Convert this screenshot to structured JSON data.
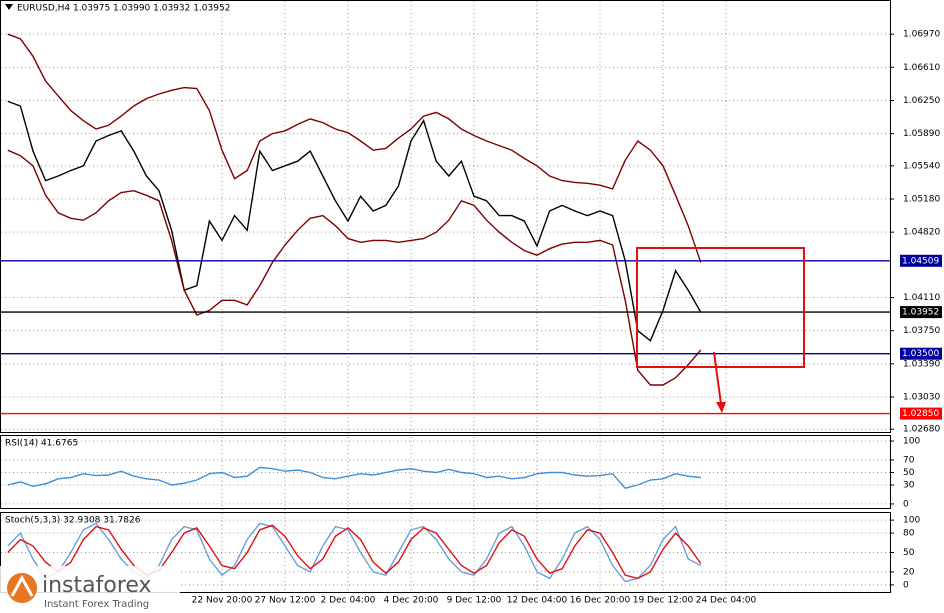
{
  "chart_data": [
    {
      "type": "line",
      "title": "EURUSD,H4  1.03975 1.03990 1.03932 1.03952",
      "categories": [
        null,
        null,
        null,
        null,
        null,
        null,
        null,
        null,
        null,
        null,
        null,
        null,
        null,
        null,
        null,
        null,
        null,
        "22 Nov 20:00",
        null,
        null,
        null,
        null,
        "27 Nov 12:00",
        null,
        null,
        null,
        null,
        "2 Dec 04:00",
        null,
        null,
        null,
        null,
        "4 Dec 20:00",
        null,
        null,
        null,
        null,
        "9 Dec 12:00",
        null,
        null,
        null,
        null,
        "12 Dec 04:00",
        null,
        null,
        null,
        null,
        "16 Dec 20:00",
        null,
        null,
        null,
        null,
        "19 Dec 12:00",
        null,
        null,
        null,
        null,
        "24 Dec 04:00"
      ],
      "series": [
        {
          "color": "#000000",
          "values": [
            1.0624,
            1.0619,
            1.057,
            1.0538,
            1.0543,
            1.0549,
            1.0554,
            1.0581,
            1.0587,
            1.0592,
            1.057,
            1.0543,
            1.0527,
            1.0484,
            1.0419,
            1.0424,
            1.0494,
            1.0473,
            1.05,
            1.0484,
            1.057,
            1.0549,
            1.0554,
            1.0559,
            1.057,
            1.0543,
            1.0516,
            1.0494,
            1.0521,
            1.0505,
            1.0511,
            1.0532,
            1.0581,
            1.0603,
            1.0559,
            1.0543,
            1.0559,
            1.0521,
            1.0516,
            1.05,
            1.05,
            1.0494,
            1.0467,
            1.0505,
            1.0511,
            1.0505,
            1.05,
            1.0505,
            1.05,
            1.0451,
            1.0375,
            1.0364,
            1.0397,
            1.044,
            1.0419,
            1.0395,
            null,
            null
          ]
        },
        {
          "color": "#800000",
          "values": [
            1.0697,
            1.0692,
            1.0673,
            1.0646,
            1.063,
            1.0614,
            1.0603,
            1.0594,
            1.0598,
            1.0608,
            1.0619,
            1.0627,
            1.0632,
            1.0636,
            1.0639,
            1.0638,
            1.0614,
            1.0571,
            1.054,
            1.0549,
            1.0581,
            1.0589,
            1.0592,
            1.0599,
            1.0605,
            1.0601,
            1.0594,
            1.059,
            1.0581,
            1.0571,
            1.0573,
            1.0584,
            1.0594,
            1.0608,
            1.0612,
            1.0605,
            1.0594,
            1.0587,
            1.0581,
            1.0576,
            1.0571,
            1.0562,
            1.0554,
            1.0543,
            1.0538,
            1.0536,
            1.0535,
            1.0533,
            1.0529,
            1.056,
            1.0581,
            1.0571,
            1.0554,
            1.0522,
            1.0489,
            1.0449,
            null,
            null
          ]
        },
        {
          "color": "#800000",
          "values": [
            1.0571,
            1.0565,
            1.0554,
            1.0522,
            1.0503,
            1.0497,
            1.0495,
            1.0503,
            1.0516,
            1.0525,
            1.0527,
            1.0522,
            1.0516,
            1.0473,
            1.0419,
            1.0392,
            1.0397,
            1.0408,
            1.0408,
            1.0403,
            1.0424,
            1.0449,
            1.0468,
            1.0484,
            1.0497,
            1.05,
            1.0489,
            1.0475,
            1.0471,
            1.0473,
            1.0473,
            1.0471,
            1.0473,
            1.0475,
            1.0482,
            1.0495,
            1.0516,
            1.0511,
            1.0495,
            1.0482,
            1.0471,
            1.0462,
            1.0457,
            1.0464,
            1.0469,
            1.0471,
            1.0471,
            1.0473,
            1.0468,
            1.0408,
            1.0332,
            1.0316,
            1.0316,
            1.0324,
            1.0338,
            1.0354,
            null,
            null
          ]
        }
      ],
      "ylim": [
        1.0265,
        1.0733
      ],
      "yticks": [
        {
          "value": 1.0697,
          "label": "1.06970"
        },
        {
          "value": 1.0661,
          "label": "1.06610"
        },
        {
          "value": 1.0625,
          "label": "1.06250"
        },
        {
          "value": 1.0589,
          "label": "1.05890"
        },
        {
          "value": 1.0554,
          "label": "1.05540"
        },
        {
          "value": 1.0518,
          "label": "1.05180"
        },
        {
          "value": 1.0482,
          "label": "1.04820"
        },
        {
          "value": 1.0411,
          "label": "1.04110"
        },
        {
          "value": 1.0375,
          "label": "1.03750"
        },
        {
          "value": 1.0339,
          "label": "1.03390"
        },
        {
          "value": 1.0303,
          "label": "1.03030"
        },
        {
          "value": 1.0268,
          "label": "1.02680"
        }
      ],
      "levels": [
        {
          "value": 1.04509,
          "color": "#0000a0"
        },
        {
          "value": 1.035,
          "label": "1.03500",
          "color": "#0000a0"
        },
        {
          "value": 1.0285,
          "label": "1.02850",
          "color": "#ff0000"
        },
        {
          "value": 1.03952,
          "color": "#000000"
        }
      ],
      "grid": true
    },
    {
      "type": "line",
      "title": "RSI(14) 41.6765",
      "series": [
        {
          "color": "#3f8fd8",
          "values": [
            30,
            35,
            28,
            32,
            40,
            42,
            48,
            45,
            46,
            52,
            44,
            40,
            38,
            30,
            33,
            38,
            48,
            50,
            42,
            44,
            58,
            56,
            52,
            54,
            50,
            42,
            40,
            44,
            48,
            46,
            50,
            54,
            56,
            52,
            50,
            55,
            50,
            48,
            42,
            44,
            40,
            42,
            48,
            50,
            50,
            46,
            44,
            45,
            48,
            25,
            30,
            38,
            40,
            48,
            44,
            42,
            null,
            null
          ]
        }
      ],
      "ylim": [
        -6.5,
        108
      ],
      "yticks": [
        0,
        30,
        50,
        70,
        100
      ],
      "grid": true
    },
    {
      "type": "line",
      "title": "Stoch(5,3,3) 32.9308 31.7826",
      "series": [
        {
          "color": "#6a9fd8",
          "values": [
            60,
            80,
            40,
            10,
            20,
            50,
            85,
            95,
            70,
            40,
            20,
            10,
            30,
            70,
            90,
            85,
            40,
            15,
            30,
            70,
            95,
            90,
            60,
            30,
            20,
            60,
            90,
            85,
            50,
            20,
            15,
            50,
            85,
            90,
            70,
            40,
            20,
            15,
            40,
            80,
            90,
            60,
            20,
            10,
            40,
            80,
            90,
            70,
            30,
            5,
            10,
            30,
            70,
            90,
            40,
            30,
            null,
            null
          ]
        },
        {
          "color": "#e01010",
          "values": [
            50,
            70,
            60,
            35,
            20,
            35,
            70,
            90,
            85,
            55,
            30,
            15,
            22,
            50,
            80,
            88,
            60,
            30,
            25,
            50,
            85,
            92,
            75,
            45,
            25,
            40,
            75,
            88,
            70,
            35,
            18,
            35,
            70,
            88,
            80,
            55,
            30,
            18,
            30,
            65,
            85,
            75,
            40,
            18,
            25,
            60,
            85,
            80,
            50,
            15,
            10,
            20,
            55,
            80,
            60,
            33,
            null,
            null
          ]
        }
      ],
      "ylim": [
        -11,
        111
      ],
      "yticks": [
        0,
        20,
        50,
        80,
        100
      ],
      "grid": true
    }
  ],
  "logo": {
    "name": "instaforex",
    "tagline": "Instant Forex Trading"
  }
}
